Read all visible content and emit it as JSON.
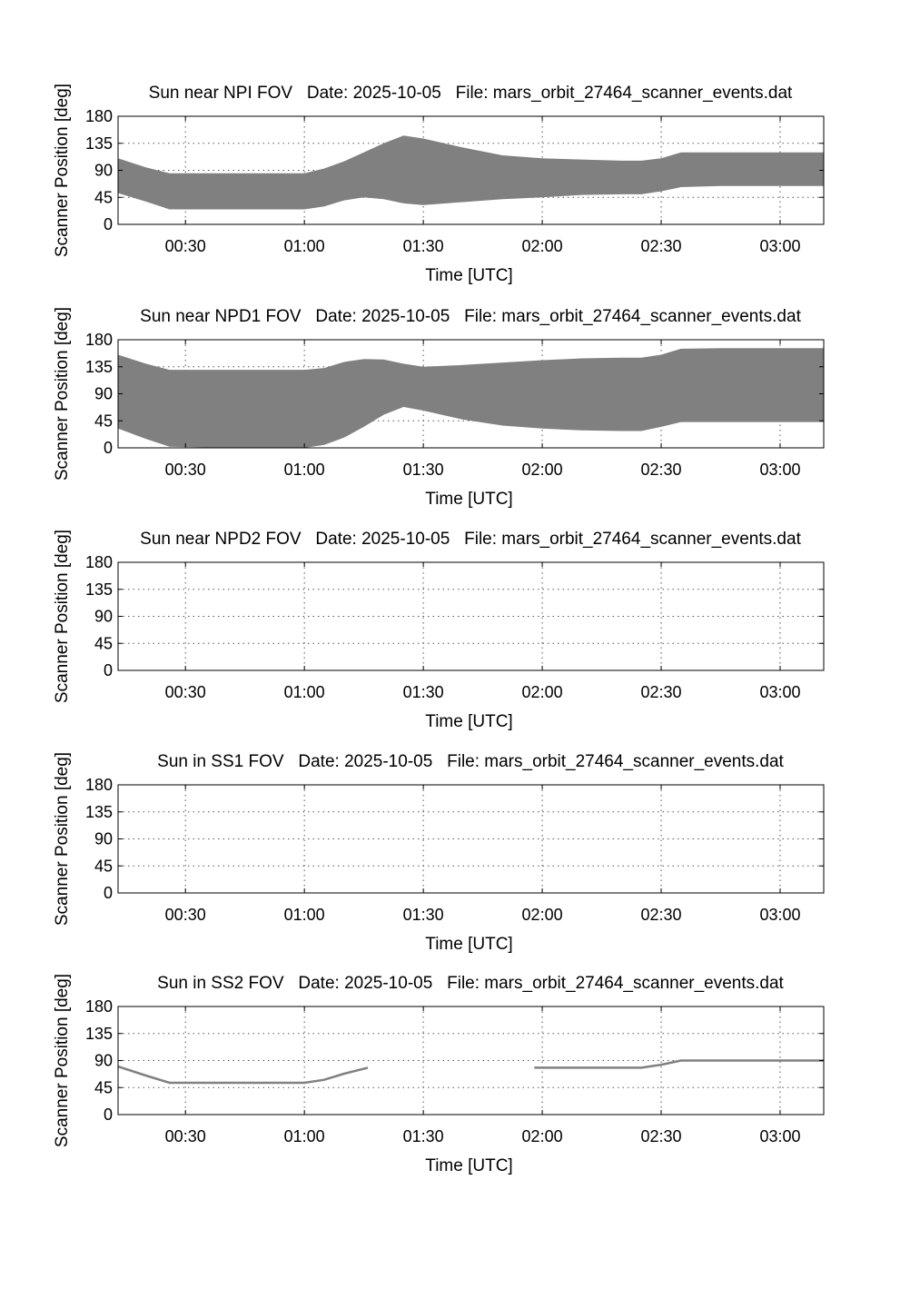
{
  "figure": {
    "colors": {
      "band": "#808080",
      "line": "#808080",
      "axes": "#000000",
      "grid": "#555555"
    }
  },
  "chart_data": [
    {
      "type": "area",
      "title": "Sun near NPI FOV   Date: 2025-10-05   File: mars_orbit_27464_scanner_events.dat",
      "xlabel": "Time [UTC]",
      "ylabel": "Scanner Position [deg]",
      "xlim": [
        "00:13",
        "03:11"
      ],
      "ylim": [
        0,
        180
      ],
      "xticks": [
        "00:30",
        "01:00",
        "01:30",
        "02:00",
        "02:30",
        "03:00"
      ],
      "yticks": [
        0,
        45,
        90,
        135,
        180
      ],
      "grid": true,
      "series": [
        {
          "x": [
            "00:13",
            "00:20",
            "00:26",
            "00:40",
            "01:00",
            "01:05",
            "01:10",
            "01:15",
            "01:20",
            "01:25",
            "01:30",
            "01:40",
            "01:50",
            "02:00",
            "02:10",
            "02:20",
            "02:25",
            "02:30",
            "02:35",
            "02:45",
            "03:11"
          ],
          "lower": [
            52,
            38,
            25,
            25,
            25,
            30,
            40,
            45,
            42,
            35,
            32,
            37,
            42,
            45,
            49,
            50,
            50,
            55,
            62,
            64,
            64
          ],
          "upper": [
            110,
            95,
            85,
            85,
            85,
            93,
            105,
            120,
            135,
            148,
            143,
            128,
            115,
            110,
            108,
            106,
            106,
            110,
            120,
            120,
            120
          ]
        }
      ]
    },
    {
      "type": "area",
      "title": "Sun near NPD1 FOV   Date: 2025-10-05   File: mars_orbit_27464_scanner_events.dat",
      "xlabel": "Time [UTC]",
      "ylabel": "Scanner Position [deg]",
      "xlim": [
        "00:13",
        "03:11"
      ],
      "ylim": [
        0,
        180
      ],
      "xticks": [
        "00:30",
        "01:00",
        "01:30",
        "02:00",
        "02:30",
        "03:00"
      ],
      "yticks": [
        0,
        45,
        90,
        135,
        180
      ],
      "grid": true,
      "series": [
        {
          "x": [
            "00:13",
            "00:20",
            "00:26",
            "00:40",
            "01:00",
            "01:05",
            "01:10",
            "01:15",
            "01:20",
            "01:25",
            "01:30",
            "01:40",
            "01:50",
            "02:00",
            "02:10",
            "02:20",
            "02:25",
            "02:30",
            "02:35",
            "02:45",
            "03:11"
          ],
          "lower": [
            32,
            15,
            2,
            0,
            0,
            5,
            17,
            35,
            55,
            68,
            62,
            47,
            37,
            32,
            29,
            28,
            28,
            35,
            43,
            43,
            43
          ],
          "upper": [
            155,
            140,
            130,
            130,
            130,
            133,
            143,
            148,
            147,
            140,
            135,
            138,
            142,
            146,
            149,
            150,
            150,
            155,
            165,
            166,
            166
          ]
        }
      ]
    },
    {
      "type": "area",
      "title": "Sun near NPD2 FOV   Date: 2025-10-05   File: mars_orbit_27464_scanner_events.dat",
      "xlabel": "Time [UTC]",
      "ylabel": "Scanner Position [deg]",
      "xlim": [
        "00:13",
        "03:11"
      ],
      "ylim": [
        0,
        180
      ],
      "xticks": [
        "00:30",
        "01:00",
        "01:30",
        "02:00",
        "02:30",
        "03:00"
      ],
      "yticks": [
        0,
        45,
        90,
        135,
        180
      ],
      "grid": true,
      "series": []
    },
    {
      "type": "line",
      "title": "Sun in SS1 FOV   Date: 2025-10-05   File: mars_orbit_27464_scanner_events.dat",
      "xlabel": "Time [UTC]",
      "ylabel": "Scanner Position [deg]",
      "xlim": [
        "00:13",
        "03:11"
      ],
      "ylim": [
        0,
        180
      ],
      "xticks": [
        "00:30",
        "01:00",
        "01:30",
        "02:00",
        "02:30",
        "03:00"
      ],
      "yticks": [
        0,
        45,
        90,
        135,
        180
      ],
      "grid": true,
      "series": []
    },
    {
      "type": "line",
      "title": "Sun in SS2 FOV   Date: 2025-10-05   File: mars_orbit_27464_scanner_events.dat",
      "xlabel": "Time [UTC]",
      "ylabel": "Scanner Position [deg]",
      "xlim": [
        "00:13",
        "03:11"
      ],
      "ylim": [
        0,
        180
      ],
      "xticks": [
        "00:30",
        "01:00",
        "01:30",
        "02:00",
        "02:30",
        "03:00"
      ],
      "yticks": [
        0,
        45,
        90,
        135,
        180
      ],
      "grid": true,
      "series": [
        {
          "segments": [
            {
              "x": [
                "00:13",
                "00:20",
                "00:26",
                "00:40",
                "01:00",
                "01:05",
                "01:10",
                "01:16"
              ],
              "y": [
                80,
                65,
                53,
                53,
                53,
                58,
                68,
                78
              ]
            },
            {
              "x": [
                "01:58",
                "02:10",
                "02:20",
                "02:25",
                "02:30",
                "02:35",
                "03:11"
              ],
              "y": [
                78,
                78,
                78,
                78,
                83,
                90,
                90
              ]
            }
          ]
        }
      ]
    }
  ]
}
